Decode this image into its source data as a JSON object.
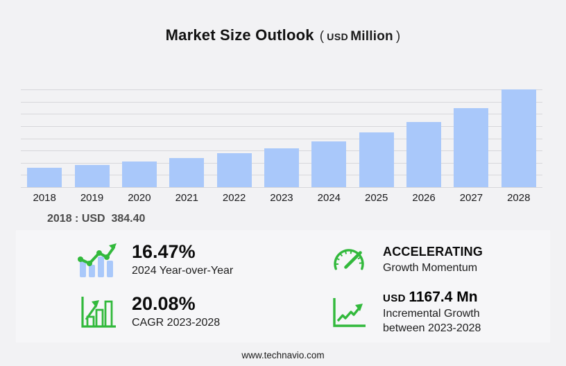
{
  "title": {
    "main": "Market Size Outlook",
    "open_paren": "(",
    "currency": "USD",
    "unit": "Million",
    "close_paren": ")"
  },
  "chart_data": {
    "type": "bar",
    "title": "Market Size Outlook (USD Million)",
    "categories": [
      "2018",
      "2019",
      "2020",
      "2021",
      "2022",
      "2023",
      "2024",
      "2025",
      "2026",
      "2027",
      "2028"
    ],
    "values": [
      384.4,
      446,
      511,
      587,
      676,
      780,
      908.5,
      1088,
      1300,
      1577,
      1947.4
    ],
    "labeled_values": {
      "2018": "USD 384.40"
    },
    "xlabel": "",
    "ylabel": "",
    "ylim": [
      0,
      1947.4
    ],
    "gridlines": 9,
    "legend": false,
    "bar_color": "#a9c8fa"
  },
  "annotation": {
    "label": "2018 : USD  384.40"
  },
  "stats": {
    "yoy": {
      "icon": "bar-line-growth-icon",
      "value": "16.47%",
      "label": "2024 Year-over-Year"
    },
    "momentum": {
      "icon": "gauge-icon",
      "value": "ACCELERATING",
      "label": "Growth Momentum"
    },
    "cagr": {
      "icon": "bar-chart-growth-icon",
      "value": "20.08%",
      "label": "CAGR 2023-2028"
    },
    "incremental": {
      "icon": "line-chart-growth-icon",
      "currency": "USD",
      "value": "1167.4 Mn",
      "label_line1": "Incremental Growth",
      "label_line2": "between 2023-2028"
    }
  },
  "footer": {
    "website": "www.technavio.com"
  },
  "colors": {
    "background": "#f2f2f4",
    "panel": "#f6f6f8",
    "bar": "#a9c8fa",
    "accent_green": "#32b93c",
    "gridline": "#d7d7da",
    "text_dark": "#111111",
    "text_gray": "#4a4a4a"
  }
}
